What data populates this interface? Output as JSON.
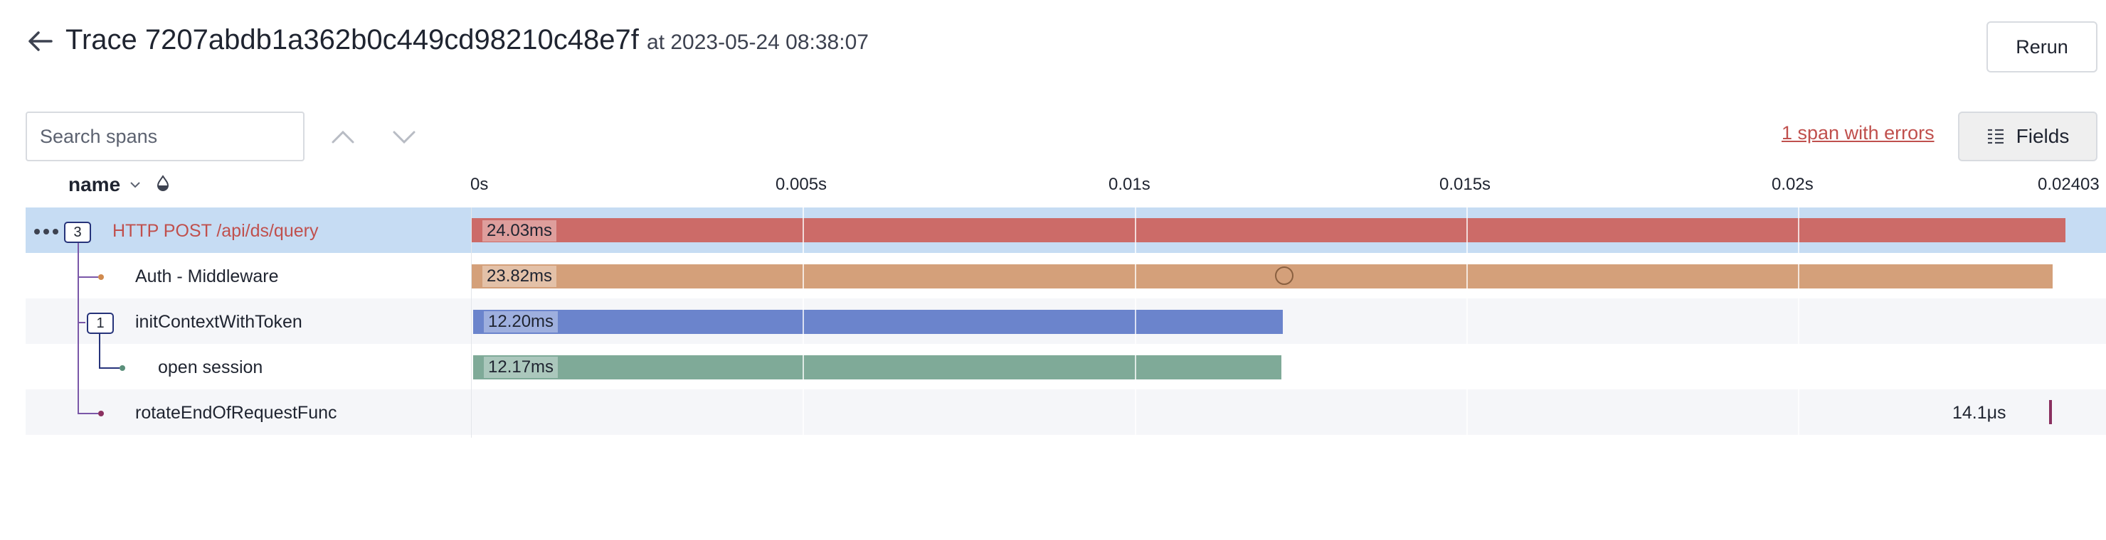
{
  "header": {
    "title": "Trace 7207abdb1a362b0c449cd98210c48e7f",
    "subtitle": "at 2023-05-24 08:38:07",
    "rerun_label": "Rerun"
  },
  "toolbar": {
    "search_placeholder": "Search spans",
    "errors_link": "1 span with errors",
    "fields_label": "Fields"
  },
  "columns": {
    "name_label": "name"
  },
  "timeline": {
    "ticks": [
      "0s",
      "0.005s",
      "0.01s",
      "0.015s",
      "0.02s",
      "0.02403"
    ]
  },
  "colors": {
    "error": "#cc6b68",
    "auth": "#d4a07a",
    "init": "#6b84cc",
    "session": "#7faa98",
    "selected_row": "#c6dcf3"
  },
  "spans": [
    {
      "name": "HTTP POST /api/ds/query",
      "duration": "24.03ms",
      "children_count": "3",
      "error": true
    },
    {
      "name": "Auth - Middleware",
      "duration": "23.82ms"
    },
    {
      "name": "initContextWithToken",
      "duration": "12.20ms",
      "children_count": "1"
    },
    {
      "name": "open session",
      "duration": "12.17ms"
    },
    {
      "name": "rotateEndOfRequestFunc",
      "duration": "14.1μs"
    }
  ]
}
